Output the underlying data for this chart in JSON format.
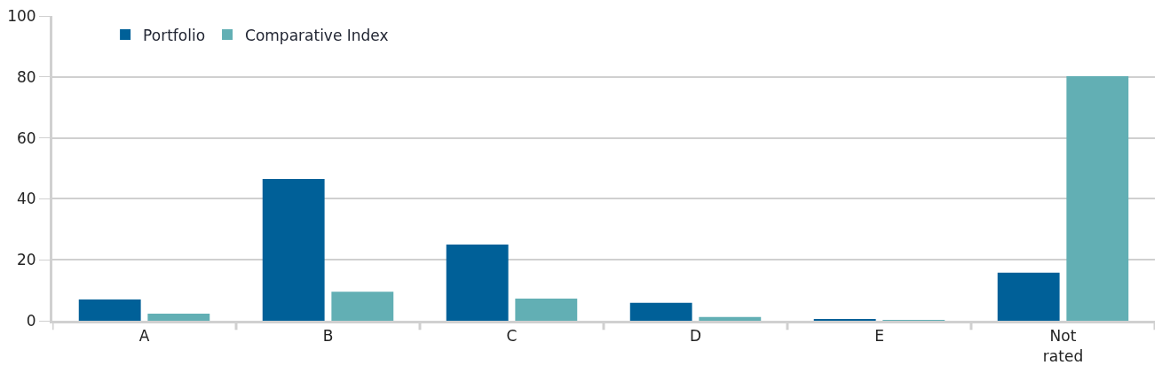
{
  "chart_data": {
    "type": "bar",
    "categories": [
      "A",
      "B",
      "C",
      "D",
      "E",
      "Not rated"
    ],
    "series": [
      {
        "name": "Portfolio",
        "color": "#006098",
        "values": [
          7.0,
          46.5,
          25.0,
          5.9,
          0.6,
          15.8
        ]
      },
      {
        "name": "Comparative Index",
        "color": "#62afb4",
        "values": [
          2.3,
          9.5,
          7.3,
          1.2,
          0.2,
          80.2
        ]
      }
    ],
    "ylim": [
      0,
      100
    ],
    "yticks": [
      0,
      20,
      40,
      60,
      80,
      100
    ],
    "grid": "y",
    "legend": "top left"
  }
}
